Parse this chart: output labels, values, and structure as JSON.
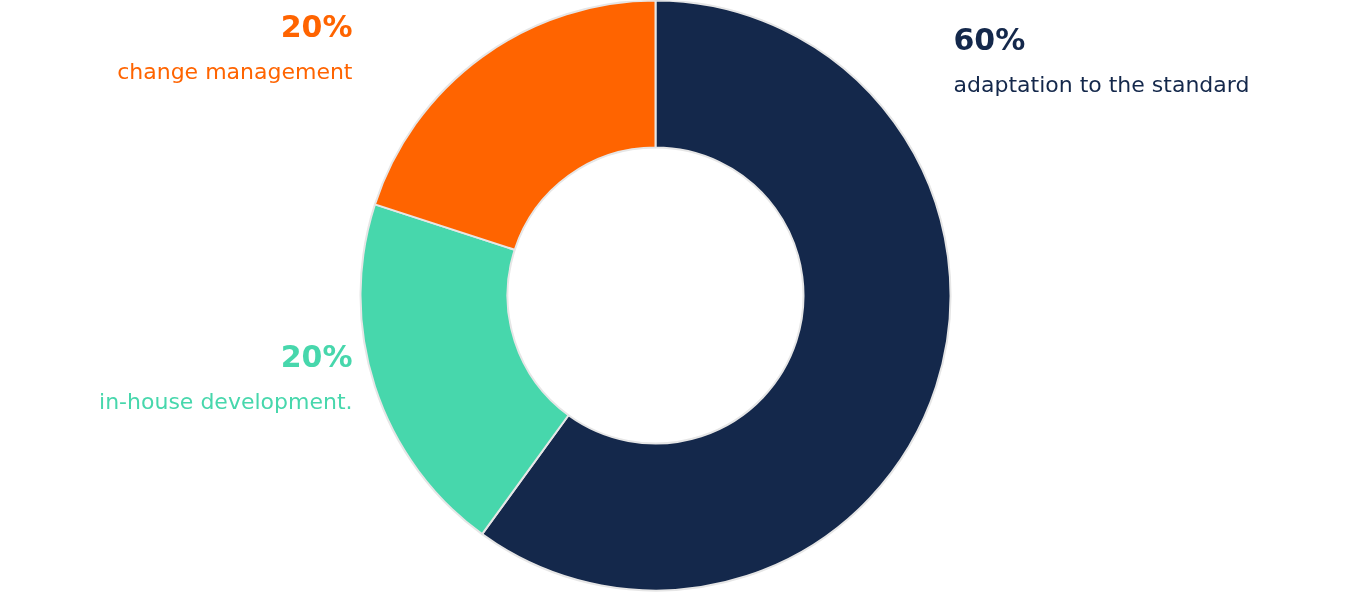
{
  "chart_data": {
    "type": "donut",
    "categories": [
      "adaptation to the standard",
      "in-house development.",
      "change management"
    ],
    "values": [
      60,
      20,
      20
    ],
    "value_labels": [
      "60%",
      "20%",
      "20%"
    ],
    "colors": [
      "#14284b",
      "#47d7ac",
      "#ff6400"
    ]
  }
}
